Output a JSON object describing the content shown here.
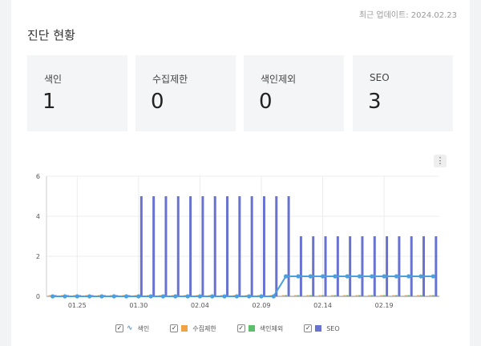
{
  "header": {
    "updated_text": "최근 업데이트: 2024.02.23",
    "section_title": "진단 현황"
  },
  "cards": [
    {
      "label": "색인",
      "value": "1"
    },
    {
      "label": "수집제한",
      "value": "0"
    },
    {
      "label": "색인제외",
      "value": "0"
    },
    {
      "label": "SEO",
      "value": "3"
    }
  ],
  "chart_menu": {
    "icon": "more-vert-icon",
    "glyph": "⋮"
  },
  "legend": [
    {
      "label": "색인",
      "color": "#4a9fdd",
      "checked": true,
      "marker": "line"
    },
    {
      "label": "수집제한",
      "color": "#f0a244",
      "checked": true,
      "marker": "square"
    },
    {
      "label": "색인제외",
      "color": "#5cbf6b",
      "checked": true,
      "marker": "square"
    },
    {
      "label": "SEO",
      "color": "#6873d1",
      "checked": true,
      "marker": "square"
    }
  ],
  "chart_data": {
    "type": "bar",
    "x": [
      "01.23",
      "01.24",
      "01.25",
      "01.26",
      "01.27",
      "01.28",
      "01.29",
      "01.30",
      "01.31",
      "02.01",
      "02.02",
      "02.03",
      "02.04",
      "02.05",
      "02.06",
      "02.07",
      "02.08",
      "02.09",
      "02.10",
      "02.11",
      "02.12",
      "02.13",
      "02.14",
      "02.15",
      "02.16",
      "02.17",
      "02.18",
      "02.19",
      "02.20",
      "02.21",
      "02.22",
      "02.23"
    ],
    "x_tick_labels": [
      "01.25",
      "01.30",
      "02.04",
      "02.09",
      "02.14",
      "02.19"
    ],
    "ylim": [
      0,
      6
    ],
    "y_ticks": [
      0,
      2,
      4,
      6
    ],
    "grid": true,
    "series": [
      {
        "name": "색인",
        "kind": "line",
        "color": "#4a9fdd",
        "values": [
          0,
          0,
          0,
          0,
          0,
          0,
          0,
          0,
          0,
          0,
          0,
          0,
          0,
          0,
          0,
          0,
          0,
          0,
          0,
          1,
          1,
          1,
          1,
          1,
          1,
          1,
          1,
          1,
          1,
          1,
          1,
          1
        ]
      },
      {
        "name": "수집제한",
        "kind": "bar",
        "color": "#f0a244",
        "values": [
          0,
          0,
          0,
          0,
          0,
          0,
          0,
          0,
          0,
          0,
          0,
          0,
          0,
          0,
          0,
          0,
          0,
          0,
          0,
          0,
          0,
          0,
          0,
          0,
          0,
          0,
          0,
          0,
          0,
          0,
          0,
          0
        ]
      },
      {
        "name": "색인제외",
        "kind": "bar",
        "color": "#5cbf6b",
        "values": [
          0,
          0,
          0,
          0,
          0,
          0,
          0,
          0,
          0,
          0,
          0,
          0,
          0,
          0,
          0,
          0,
          0,
          0,
          0,
          0,
          0,
          0,
          0,
          0,
          0,
          0,
          0,
          0,
          0,
          0,
          0,
          0
        ]
      },
      {
        "name": "SEO",
        "kind": "bar",
        "color": "#6873d1",
        "values": [
          0,
          0,
          0,
          0,
          0,
          0,
          0,
          5,
          5,
          5,
          5,
          5,
          5,
          5,
          5,
          5,
          5,
          5,
          5,
          5,
          3,
          3,
          3,
          3,
          3,
          3,
          3,
          3,
          3,
          3,
          3,
          3
        ]
      }
    ]
  }
}
